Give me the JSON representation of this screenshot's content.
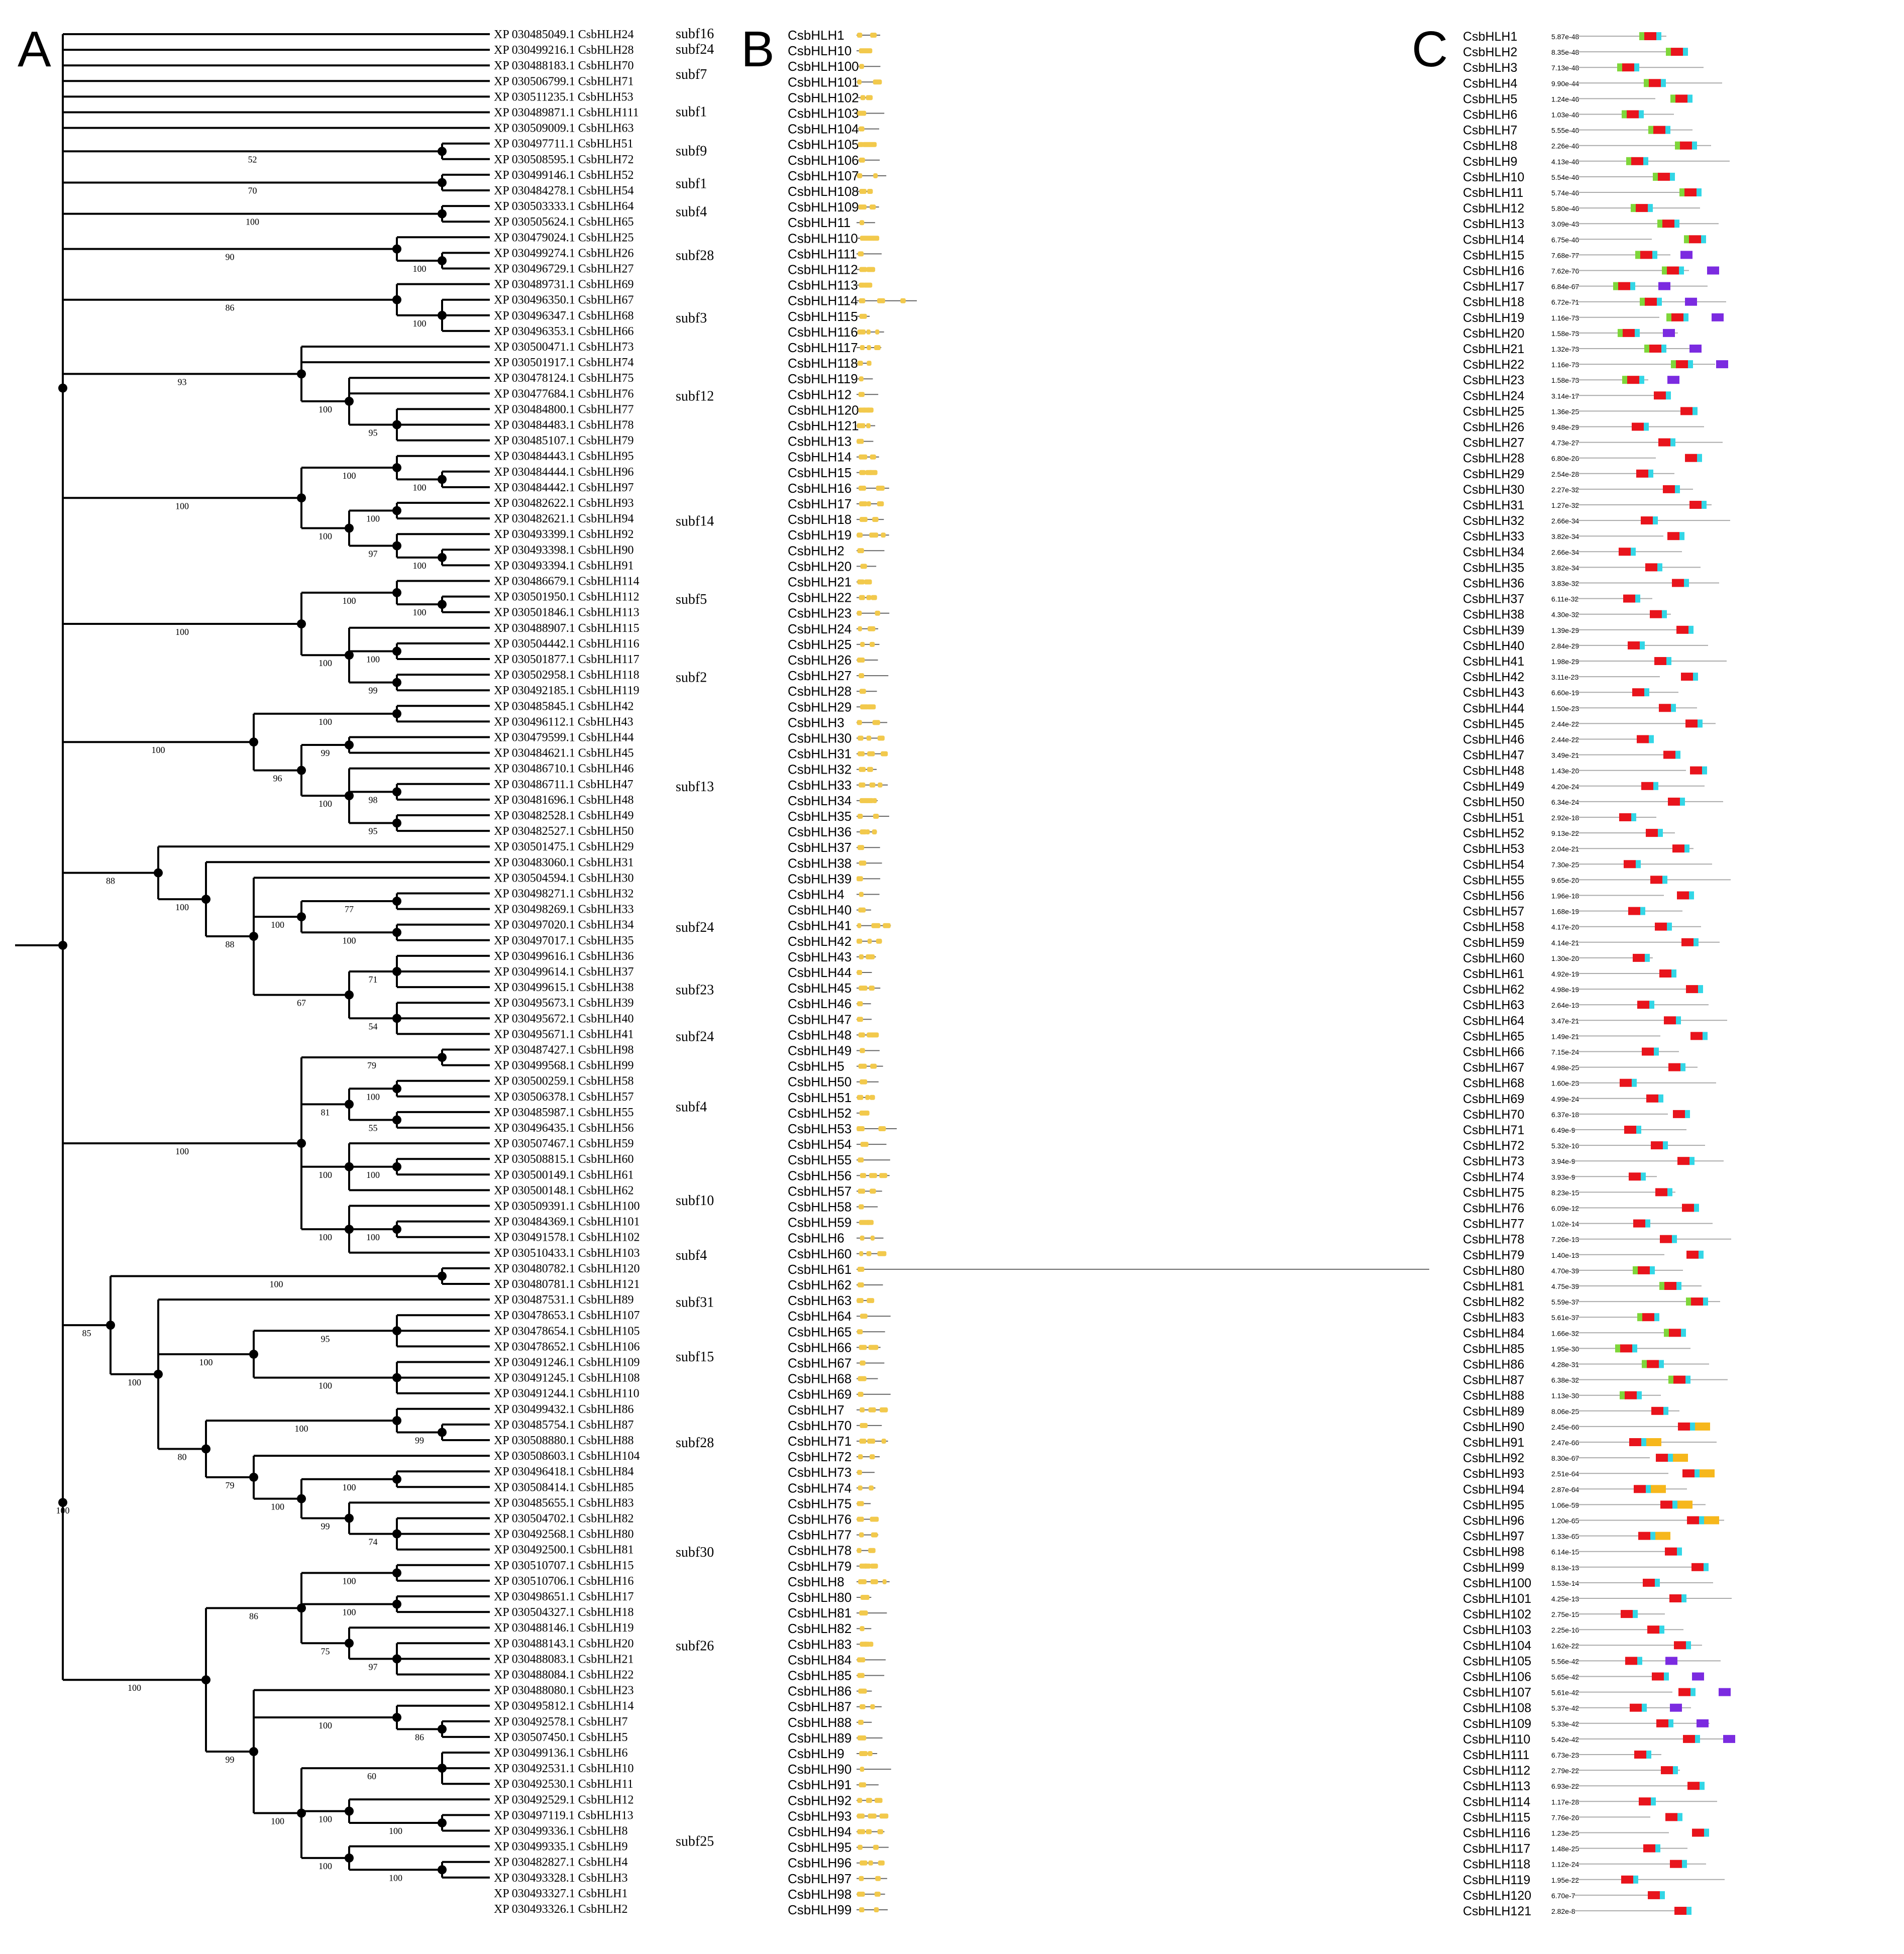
{
  "panels": {
    "a": "A",
    "b": "B",
    "c": "C"
  },
  "colors": {
    "red": "#e8141c",
    "green": "#7fd63a",
    "cyan": "#33d6e6",
    "purple": "#7b2be0",
    "orange": "#f6b71c",
    "gene": "#f2c94c",
    "line": "#666666"
  },
  "tree": {
    "leaves": [
      "XP 030485049.1 CsbHLH24",
      "XP 030499216.1 CsbHLH28",
      "XP 030488183.1 CsbHLH70",
      "XP 030506799.1 CsbHLH71",
      "XP 030511235.1 CsbHLH53",
      "XP 030489871.1 CsbHLH111",
      "XP 030509009.1 CsbHLH63",
      "XP 030497711.1 CsbHLH51",
      "XP 030508595.1 CsbHLH72",
      "XP 030499146.1 CsbHLH52",
      "XP 030484278.1 CsbHLH54",
      "XP 030503333.1 CsbHLH64",
      "XP 030505624.1 CsbHLH65",
      "XP 030479024.1 CsbHLH25",
      "XP 030499274.1 CsbHLH26",
      "XP 030496729.1 CsbHLH27",
      "XP 030489731.1 CsbHLH69",
      "XP 030496350.1 CsbHLH67",
      "XP 030496347.1 CsbHLH68",
      "XP 030496353.1 CsbHLH66",
      "XP 030500471.1 CsbHLH73",
      "XP 030501917.1 CsbHLH74",
      "XP 030478124.1 CsbHLH75",
      "XP 030477684.1 CsbHLH76",
      "XP 030484800.1 CsbHLH77",
      "XP 030484483.1 CsbHLH78",
      "XP 030485107.1 CsbHLH79",
      "XP 030484443.1 CsbHLH95",
      "XP 030484444.1 CsbHLH96",
      "XP 030484442.1 CsbHLH97",
      "XP 030482622.1 CsbHLH93",
      "XP 030482621.1 CsbHLH94",
      "XP 030493399.1 CsbHLH92",
      "XP 030493398.1 CsbHLH90",
      "XP 030493394.1 CsbHLH91",
      "XP 030486679.1 CsbHLH114",
      "XP 030501950.1 CsbHLH112",
      "XP 030501846.1 CsbHLH113",
      "XP 030488907.1 CsbHLH115",
      "XP 030504442.1 CsbHLH116",
      "XP 030501877.1 CsbHLH117",
      "XP 030502958.1 CsbHLH118",
      "XP 030492185.1 CsbHLH119",
      "XP 030485845.1 CsbHLH42",
      "XP 030496112.1 CsbHLH43",
      "XP 030479599.1 CsbHLH44",
      "XP 030484621.1 CsbHLH45",
      "XP 030486710.1 CsbHLH46",
      "XP 030486711.1 CsbHLH47",
      "XP 030481696.1 CsbHLH48",
      "XP 030482528.1 CsbHLH49",
      "XP 030482527.1 CsbHLH50",
      "XP 030501475.1 CsbHLH29",
      "XP 030483060.1 CsbHLH31",
      "XP 030504594.1 CsbHLH30",
      "XP 030498271.1 CsbHLH32",
      "XP 030498269.1 CsbHLH33",
      "XP 030497020.1 CsbHLH34",
      "XP 030497017.1 CsbHLH35",
      "XP 030499616.1 CsbHLH36",
      "XP 030499614.1 CsbHLH37",
      "XP 030499615.1 CsbHLH38",
      "XP 030495673.1 CsbHLH39",
      "XP 030495672.1 CsbHLH40",
      "XP 030495671.1 CsbHLH41",
      "XP 030487427.1 CsbHLH98",
      "XP 030499568.1 CsbHLH99",
      "XP 030500259.1 CsbHLH58",
      "XP 030506378.1 CsbHLH57",
      "XP 030485987.1 CsbHLH55",
      "XP 030496435.1 CsbHLH56",
      "XP 030507467.1 CsbHLH59",
      "XP 030508815.1 CsbHLH60",
      "XP 030500149.1 CsbHLH61",
      "XP 030500148.1 CsbHLH62",
      "XP 030509391.1 CsbHLH100",
      "XP 030484369.1 CsbHLH101",
      "XP 030491578.1 CsbHLH102",
      "XP 030510433.1 CsbHLH103",
      "XP 030480782.1 CsbHLH120",
      "XP 030480781.1 CsbHLH121",
      "XP 030487531.1 CsbHLH89",
      "XP 030478653.1 CsbHLH107",
      "XP 030478654.1 CsbHLH105",
      "XP 030478652.1 CsbHLH106",
      "XP 030491246.1 CsbHLH109",
      "XP 030491245.1 CsbHLH108",
      "XP 030491244.1 CsbHLH110",
      "XP 030499432.1 CsbHLH86",
      "XP 030485754.1 CsbHLH87",
      "XP 030508880.1 CsbHLH88",
      "XP 030508603.1 CsbHLH104",
      "XP 030496418.1 CsbHLH84",
      "XP 030508414.1 CsbHLH85",
      "XP 030485655.1 CsbHLH83",
      "XP 030504702.1 CsbHLH82",
      "XP 030492568.1 CsbHLH80",
      "XP 030492500.1 CsbHLH81",
      "XP 030510707.1 CsbHLH15",
      "XP 030510706.1 CsbHLH16",
      "XP 030498651.1 CsbHLH17",
      "XP 030504327.1 CsbHLH18",
      "XP 030488146.1 CsbHLH19",
      "XP 030488143.1 CsbHLH20",
      "XP 030488083.1 CsbHLH21",
      "XP 030488084.1 CsbHLH22",
      "XP 030488080.1 CsbHLH23",
      "XP 030495812.1 CsbHLH14",
      "XP 030492578.1 CsbHLH7",
      "XP 030507450.1 CsbHLH5",
      "XP 030499136.1 CsbHLH6",
      "XP 030492531.1 CsbHLH10",
      "XP 030492530.1 CsbHLH11",
      "XP 030492529.1 CsbHLH12",
      "XP 030497119.1 CsbHLH13",
      "XP 030499336.1 CsbHLH8",
      "XP 030499335.1 CsbHLH9",
      "XP 030482827.1 CsbHLH4",
      "XP 030493328.1 CsbHLH3",
      "XP 030493327.1 CsbHLH1",
      "XP 030493326.1 CsbHLH2"
    ],
    "subfamilies": [
      {
        "label": "subf16",
        "row": 0
      },
      {
        "label": "subf24",
        "row": 1
      },
      {
        "label": "subf7",
        "row": 2.6
      },
      {
        "label": "subf1",
        "row": 5
      },
      {
        "label": "subf9",
        "row": 7.5
      },
      {
        "label": "subf1",
        "row": 9.6
      },
      {
        "label": "subf4",
        "row": 11.4
      },
      {
        "label": "subf28",
        "row": 14.2
      },
      {
        "label": "subf3",
        "row": 18.2
      },
      {
        "label": "subf12",
        "row": 23.2
      },
      {
        "label": "subf14",
        "row": 31.2
      },
      {
        "label": "subf5",
        "row": 36.2
      },
      {
        "label": "subf2",
        "row": 41.2
      },
      {
        "label": "subf13",
        "row": 48.2
      },
      {
        "label": "subf24",
        "row": 57.2
      },
      {
        "label": "subf23",
        "row": 61.2
      },
      {
        "label": "subf24",
        "row": 64.2
      },
      {
        "label": "subf4",
        "row": 68.7
      },
      {
        "label": "subf10",
        "row": 74.7
      },
      {
        "label": "subf4",
        "row": 78.2
      },
      {
        "label": "subf31",
        "row": 81.2
      },
      {
        "label": "subf15",
        "row": 84.7
      },
      {
        "label": "subf28",
        "row": 90.2
      },
      {
        "label": "subf30",
        "row": 97.2
      },
      {
        "label": "subf26",
        "row": 103.2
      },
      {
        "label": "subf25",
        "row": 115.7
      }
    ],
    "bootstrap": [
      "52",
      "70",
      "100",
      "100",
      "90",
      "100",
      "86",
      "95",
      "100",
      "93",
      "100",
      "100",
      "100",
      "100",
      "97",
      "100",
      "100",
      "100",
      "100",
      "100",
      "99",
      "100",
      "100",
      "100",
      "99",
      "98",
      "95",
      "100",
      "96",
      "100",
      "77",
      "100",
      "100",
      "71",
      "54",
      "67",
      "88",
      "100",
      "88",
      "79",
      "100",
      "55",
      "81",
      "100",
      "100",
      "100",
      "100",
      "100",
      "100",
      "95",
      "100",
      "100",
      "99",
      "100",
      "100",
      "74",
      "99",
      "100",
      "79",
      "80",
      "100",
      "85",
      "100",
      "100",
      "97",
      "75",
      "86",
      "86",
      "100",
      "60",
      "100",
      "100",
      "100",
      "100",
      "100",
      "99",
      "100",
      "100",
      "100",
      "94",
      "69",
      "100",
      "100",
      "71",
      "100",
      "77",
      "100",
      "100",
      "89"
    ]
  },
  "structure": {
    "genes": [
      "CsbHLH1",
      "CsbHLH10",
      "CsbHLH100",
      "CsbHLH101",
      "CsbHLH102",
      "CsbHLH103",
      "CsbHLH104",
      "CsbHLH105",
      "CsbHLH106",
      "CsbHLH107",
      "CsbHLH108",
      "CsbHLH109",
      "CsbHLH11",
      "CsbHLH110",
      "CsbHLH111",
      "CsbHLH112",
      "CsbHLH113",
      "CsbHLH114",
      "CsbHLH115",
      "CsbHLH116",
      "CsbHLH117",
      "CsbHLH118",
      "CsbHLH119",
      "CsbHLH12",
      "CsbHLH120",
      "CsbHLH121",
      "CsbHLH13",
      "CsbHLH14",
      "CsbHLH15",
      "CsbHLH16",
      "CsbHLH17",
      "CsbHLH18",
      "CsbHLH19",
      "CsbHLH2",
      "CsbHLH20",
      "CsbHLH21",
      "CsbHLH22",
      "CsbHLH23",
      "CsbHLH24",
      "CsbHLH25",
      "CsbHLH26",
      "CsbHLH27",
      "CsbHLH28",
      "CsbHLH29",
      "CsbHLH3",
      "CsbHLH30",
      "CsbHLH31",
      "CsbHLH32",
      "CsbHLH33",
      "CsbHLH34",
      "CsbHLH35",
      "CsbHLH36",
      "CsbHLH37",
      "CsbHLH38",
      "CsbHLH39",
      "CsbHLH4",
      "CsbHLH40",
      "CsbHLH41",
      "CsbHLH42",
      "CsbHLH43",
      "CsbHLH44",
      "CsbHLH45",
      "CsbHLH46",
      "CsbHLH47",
      "CsbHLH48",
      "CsbHLH49",
      "CsbHLH5",
      "CsbHLH50",
      "CsbHLH51",
      "CsbHLH52",
      "CsbHLH53",
      "CsbHLH54",
      "CsbHLH55",
      "CsbHLH56",
      "CsbHLH57",
      "CsbHLH58",
      "CsbHLH59",
      "CsbHLH6",
      "CsbHLH60",
      "CsbHLH61",
      "CsbHLH62",
      "CsbHLH63",
      "CsbHLH64",
      "CsbHLH65",
      "CsbHLH66",
      "CsbHLH67",
      "CsbHLH68",
      "CsbHLH69",
      "CsbHLH7",
      "CsbHLH70",
      "CsbHLH71",
      "CsbHLH72",
      "CsbHLH73",
      "CsbHLH74",
      "CsbHLH75",
      "CsbHLH76",
      "CsbHLH77",
      "CsbHLH78",
      "CsbHLH79",
      "CsbHLH8",
      "CsbHLH80",
      "CsbHLH81",
      "CsbHLH82",
      "CsbHLH83",
      "CsbHLH84",
      "CsbHLH85",
      "CsbHLH86",
      "CsbHLH87",
      "CsbHLH88",
      "CsbHLH89",
      "CsbHLH9",
      "CsbHLH90",
      "CsbHLH91",
      "CsbHLH92",
      "CsbHLH93",
      "CsbHLH94",
      "CsbHLH95",
      "CsbHLH96",
      "CsbHLH97",
      "CsbHLH98",
      "CsbHLH99"
    ]
  },
  "motifs": {
    "names": [
      "CsbHLH1",
      "CsbHLH2",
      "CsbHLH3",
      "CsbHLH4",
      "CsbHLH5",
      "CsbHLH6",
      "CsbHLH7",
      "CsbHLH8",
      "CsbHLH9",
      "CsbHLH10",
      "CsbHLH11",
      "CsbHLH12",
      "CsbHLH13",
      "CsbHLH14",
      "CsbHLH15",
      "CsbHLH16",
      "CsbHLH17",
      "CsbHLH18",
      "CsbHLH19",
      "CsbHLH20",
      "CsbHLH21",
      "CsbHLH22",
      "CsbHLH23",
      "CsbHLH24",
      "CsbHLH25",
      "CsbHLH26",
      "CsbHLH27",
      "CsbHLH28",
      "CsbHLH29",
      "CsbHLH30",
      "CsbHLH31",
      "CsbHLH32",
      "CsbHLH33",
      "CsbHLH34",
      "CsbHLH35",
      "CsbHLH36",
      "CsbHLH37",
      "CsbHLH38",
      "CsbHLH39",
      "CsbHLH40",
      "CsbHLH41",
      "CsbHLH42",
      "CsbHLH43",
      "CsbHLH44",
      "CsbHLH45",
      "CsbHLH46",
      "CsbHLH47",
      "CsbHLH48",
      "CsbHLH49",
      "CsbHLH50",
      "CsbHLH51",
      "CsbHLH52",
      "CsbHLH53",
      "CsbHLH54",
      "CsbHLH55",
      "CsbHLH56",
      "CsbHLH57",
      "CsbHLH58",
      "CsbHLH59",
      "CsbHLH60",
      "CsbHLH61",
      "CsbHLH62",
      "CsbHLH63",
      "CsbHLH64",
      "CsbHLH65",
      "CsbHLH66",
      "CsbHLH67",
      "CsbHLH68",
      "CsbHLH69",
      "CsbHLH70",
      "CsbHLH71",
      "CsbHLH72",
      "CsbHLH73",
      "CsbHLH74",
      "CsbHLH75",
      "CsbHLH76",
      "CsbHLH77",
      "CsbHLH78",
      "CsbHLH79",
      "CsbHLH80",
      "CsbHLH81",
      "CsbHLH82",
      "CsbHLH83",
      "CsbHLH84",
      "CsbHLH85",
      "CsbHLH86",
      "CsbHLH87",
      "CsbHLH88",
      "CsbHLH89",
      "CsbHLH90",
      "CsbHLH91",
      "CsbHLH92",
      "CsbHLH93",
      "CsbHLH94",
      "CsbHLH95",
      "CsbHLH96",
      "CsbHLH97",
      "CsbHLH98",
      "CsbHLH99",
      "CsbHLH100",
      "CsbHLH101",
      "CsbHLH102",
      "CsbHLH103",
      "CsbHLH104",
      "CsbHLH105",
      "CsbHLH106",
      "CsbHLH107",
      "CsbHLH108",
      "CsbHLH109",
      "CsbHLH110",
      "CsbHLH111",
      "CsbHLH112",
      "CsbHLH113",
      "CsbHLH114",
      "CsbHLH115",
      "CsbHLH116",
      "CsbHLH117",
      "CsbHLH118",
      "CsbHLH119",
      "CsbHLH120",
      "CsbHLH121"
    ],
    "evalues": [
      "5.87e-48",
      "8.35e-48",
      "7.13e-48",
      "9.90e-44",
      "1.24e-46",
      "1.03e-46",
      "5.55e-40",
      "2.26e-46",
      "4.13e-46",
      "5.54e-46",
      "5.74e-46",
      "5.80e-46",
      "3.09e-43",
      "6.75e-40",
      "7.68e-77",
      "7.62e-76",
      "6.84e-67",
      "6.72e-71",
      "1.16e-73",
      "1.58e-73",
      "1.32e-73",
      "1.16e-73",
      "1.58e-73",
      "3.14e-17",
      "1.36e-25",
      "9.48e-29",
      "4.73e-27",
      "6.80e-26",
      "2.54e-28",
      "2.27e-32",
      "1.27e-32",
      "2.66e-34",
      "3.82e-34",
      "2.66e-34",
      "3.82e-34",
      "3.83e-32",
      "6.11e-32",
      "4.30e-32",
      "1.39e-29",
      "2.84e-29",
      "1.98e-29",
      "3.11e-23",
      "6.60e-19",
      "1.50e-23",
      "2.44e-22",
      "2.44e-22",
      "3.49e-21",
      "1.43e-20",
      "4.20e-24",
      "6.34e-24",
      "2.92e-18",
      "9.13e-22",
      "2.04e-21",
      "7.30e-25",
      "9.65e-20",
      "1.96e-18",
      "1.68e-19",
      "4.17e-20",
      "4.14e-21",
      "1.30e-20",
      "4.92e-19",
      "4.98e-19",
      "2.64e-13",
      "3.47e-21",
      "1.49e-21",
      "7.15e-24",
      "4.98e-25",
      "1.60e-23",
      "4.99e-24",
      "6.37e-18",
      "6.49e-9",
      "5.32e-16",
      "3.94e-9",
      "3.93e-9",
      "8.23e-15",
      "6.09e-12",
      "1.02e-14",
      "7.26e-13",
      "1.40e-13",
      "4.70e-39",
      "4.75e-39",
      "5.59e-37",
      "5.61e-37",
      "1.66e-32",
      "1.95e-30",
      "4.28e-31",
      "6.38e-32",
      "1.13e-30",
      "8.06e-25",
      "2.45e-66",
      "2.47e-66",
      "8.30e-67",
      "2.51e-64",
      "2.87e-64",
      "1.06e-59",
      "1.20e-65",
      "1.33e-65",
      "6.14e-15",
      "8.13e-13",
      "1.53e-14",
      "4.25e-13",
      "2.75e-15",
      "2.25e-16",
      "1.62e-22",
      "5.56e-42",
      "5.65e-42",
      "5.61e-42",
      "5.37e-42",
      "5.33e-42",
      "5.42e-42",
      "6.73e-23",
      "2.79e-22",
      "6.93e-22",
      "1.17e-28",
      "7.76e-26",
      "1.23e-25",
      "1.48e-25",
      "1.12e-24",
      "1.95e-22",
      "6.70e-7",
      "2.82e-8"
    ]
  }
}
